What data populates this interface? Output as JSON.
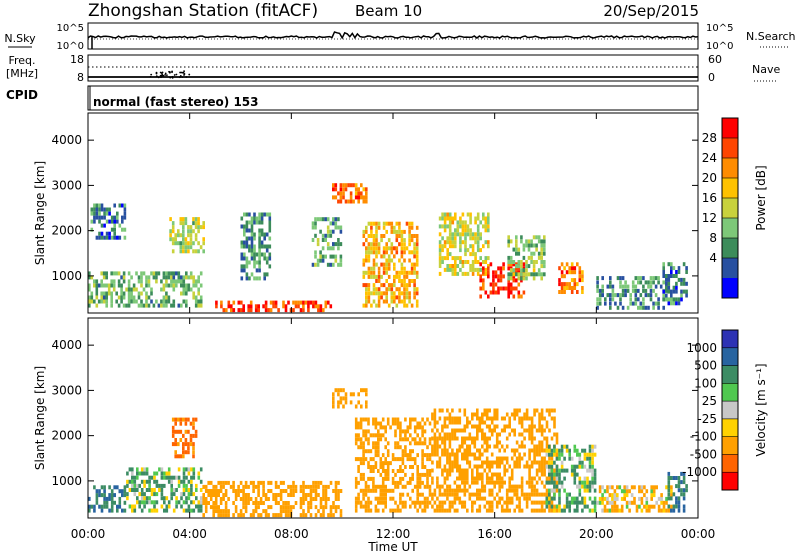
{
  "header": {
    "station": "Zhongshan Station (fitACF)",
    "beam": "Beam 10",
    "date": "20/Sep/2015"
  },
  "sky_panel": {
    "left_label": "N.Sky",
    "left_ticks": [
      "10^5",
      "10^0"
    ],
    "right_label": "N.Search",
    "right_ticks": [
      "10^5",
      "10^0"
    ]
  },
  "freq_panel": {
    "left_label_1": "Freq.",
    "left_label_2": "[MHz]",
    "left_ticks": [
      "18",
      "8"
    ],
    "right_label": "Nave",
    "right_ticks": [
      "60",
      "0"
    ]
  },
  "cpid_panel": {
    "label": "CPID",
    "text": "normal (fast stereo) 153"
  },
  "axes": {
    "ylabel": "Slant Range [km]",
    "xlabel": "Time UT",
    "x_ticks": [
      "00:00",
      "04:00",
      "08:00",
      "12:00",
      "16:00",
      "20:00",
      "00:00"
    ],
    "y_ticks": [
      "1000",
      "2000",
      "3000",
      "4000"
    ]
  },
  "colorbars": {
    "power": {
      "label": "Power [dB]",
      "ticks": [
        "28",
        "24",
        "20",
        "16",
        "12",
        "8",
        "4"
      ],
      "colors": [
        "#ff0000",
        "#ff4500",
        "#ff8c00",
        "#ffc200",
        "#c8d23c",
        "#7dc878",
        "#3c8c5a",
        "#2850a0",
        "#0000ff"
      ]
    },
    "velocity": {
      "label": "Velocity [m s⁻¹]",
      "ticks": [
        "1000",
        "500",
        "100",
        "25",
        "-25",
        "-100",
        "-500",
        "-1000"
      ],
      "colors": [
        "#2d32b4",
        "#2864a0",
        "#3c8c64",
        "#50c850",
        "#c8c8c8",
        "#ffd200",
        "#ffa000",
        "#ff6400",
        "#ff0000"
      ]
    }
  },
  "chart_data": [
    {
      "type": "heatmap",
      "title": "Power",
      "xlabel": "Time UT",
      "ylabel": "Slant Range [km]",
      "xlim": [
        0,
        24
      ],
      "ylim": [
        180,
        4600
      ],
      "colorbar_range": [
        0,
        30
      ],
      "regions": [
        {
          "t0": 0.0,
          "t1": 4.5,
          "r0": 300,
          "r1": 1100,
          "value": 10
        },
        {
          "t0": 0.1,
          "t1": 1.5,
          "r0": 1800,
          "r1": 2600,
          "value": 6
        },
        {
          "t0": 3.2,
          "t1": 4.6,
          "r0": 1500,
          "r1": 2300,
          "value": 14
        },
        {
          "t0": 5.0,
          "t1": 9.6,
          "r0": 200,
          "r1": 450,
          "value": 27
        },
        {
          "t0": 6.0,
          "t1": 7.2,
          "r0": 900,
          "r1": 2400,
          "value": 8
        },
        {
          "t0": 8.8,
          "t1": 10.0,
          "r0": 1200,
          "r1": 2300,
          "value": 9
        },
        {
          "t0": 9.6,
          "t1": 11.0,
          "r0": 2600,
          "r1": 3050,
          "value": 24
        },
        {
          "t0": 10.8,
          "t1": 13.0,
          "r0": 300,
          "r1": 2200,
          "value": 20
        },
        {
          "t0": 13.8,
          "t1": 15.8,
          "r0": 1000,
          "r1": 2400,
          "value": 16
        },
        {
          "t0": 15.4,
          "t1": 17.2,
          "r0": 500,
          "r1": 1300,
          "value": 28
        },
        {
          "t0": 16.5,
          "t1": 18.0,
          "r0": 900,
          "r1": 1900,
          "value": 12
        },
        {
          "t0": 18.5,
          "t1": 19.5,
          "r0": 600,
          "r1": 1300,
          "value": 24
        },
        {
          "t0": 20.0,
          "t1": 22.8,
          "r0": 250,
          "r1": 1000,
          "value": 8
        },
        {
          "t0": 22.6,
          "t1": 23.6,
          "r0": 350,
          "r1": 1300,
          "value": 6
        }
      ]
    },
    {
      "type": "heatmap",
      "title": "Velocity",
      "xlabel": "Time UT",
      "ylabel": "Slant Range [km]",
      "xlim": [
        0,
        24
      ],
      "ylim": [
        180,
        4600
      ],
      "colorbar_range": [
        -1000,
        1000
      ],
      "regions": [
        {
          "t0": 0.0,
          "t1": 1.5,
          "r0": 300,
          "r1": 900,
          "value": 500
        },
        {
          "t0": 1.5,
          "t1": 4.5,
          "r0": 300,
          "r1": 1300,
          "value": 100
        },
        {
          "t0": 3.3,
          "t1": 4.3,
          "r0": 1500,
          "r1": 2400,
          "value": -600
        },
        {
          "t0": 4.5,
          "t1": 10.0,
          "r0": 200,
          "r1": 1000,
          "value": -300
        },
        {
          "t0": 9.6,
          "t1": 11.0,
          "r0": 2600,
          "r1": 3050,
          "value": -300
        },
        {
          "t0": 10.5,
          "t1": 13.5,
          "r0": 300,
          "r1": 2400,
          "value": -300
        },
        {
          "t0": 13.5,
          "t1": 18.5,
          "r0": 300,
          "r1": 2600,
          "value": -300
        },
        {
          "t0": 18.0,
          "t1": 20.0,
          "r0": 300,
          "r1": 1800,
          "value": 100
        },
        {
          "t0": 20.0,
          "t1": 23.0,
          "r0": 300,
          "r1": 900,
          "value": -100
        },
        {
          "t0": 22.8,
          "t1": 23.6,
          "r0": 300,
          "r1": 1200,
          "value": 500
        }
      ]
    }
  ]
}
